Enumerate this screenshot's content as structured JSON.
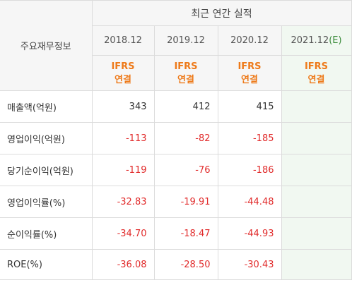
{
  "table": {
    "row_header_title": "주요재무정보",
    "group_header": "최근 연간 실적",
    "periods": [
      {
        "label": "2018.12",
        "estimate": ""
      },
      {
        "label": "2019.12",
        "estimate": ""
      },
      {
        "label": "2020.12",
        "estimate": ""
      },
      {
        "label": "2021.12",
        "estimate": "(E)"
      }
    ],
    "accounting_standard": [
      "IFRS",
      "IFRS",
      "IFRS",
      "IFRS"
    ],
    "consolidation": [
      "연결",
      "연결",
      "연결",
      "연결"
    ],
    "rows": [
      {
        "label": "매출액(억원)",
        "values": [
          "343",
          "412",
          "415",
          ""
        ]
      },
      {
        "label": "영업이익(억원)",
        "values": [
          "-113",
          "-82",
          "-185",
          ""
        ]
      },
      {
        "label": "당기순이익(억원)",
        "values": [
          "-119",
          "-76",
          "-186",
          ""
        ]
      },
      {
        "label": "영업이익률(%)",
        "values": [
          "-32.83",
          "-19.91",
          "-44.48",
          ""
        ]
      },
      {
        "label": "순이익률(%)",
        "values": [
          "-34.70",
          "-18.47",
          "-44.93",
          ""
        ]
      },
      {
        "label": "ROE(%)",
        "values": [
          "-36.08",
          "-28.50",
          "-30.43",
          ""
        ]
      }
    ]
  },
  "colors": {
    "negative": "#e12b2b",
    "ifrs": "#ee7a1a",
    "estimate_bg": "#f1f8f1",
    "estimate_mark": "#3a8b3a"
  }
}
